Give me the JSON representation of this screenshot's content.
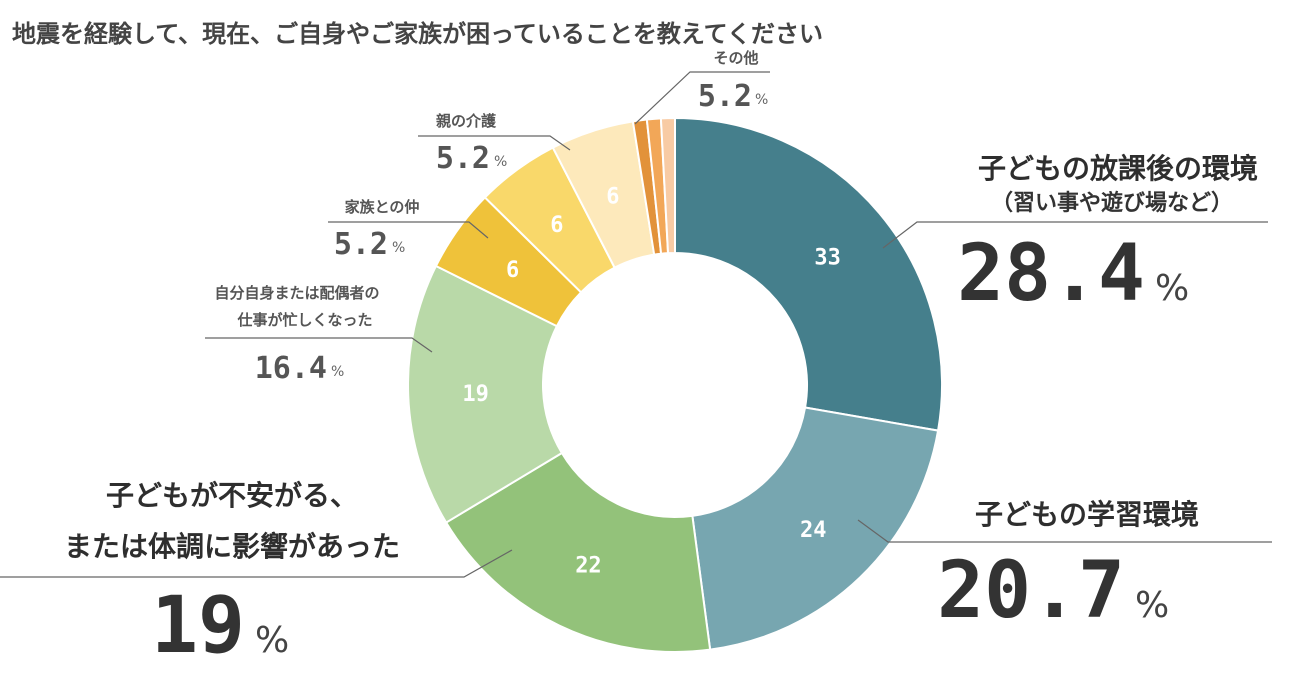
{
  "chart_data": {
    "type": "pie",
    "title": "地震を経験して、現在、ご自身やご家族が困っていることを教えてください",
    "unit": "%",
    "slices": [
      {
        "label": "子どもの放課後の環境",
        "sublabel": "（習い事や遊び場など）",
        "value": 33,
        "percent": "28.4",
        "color": "#457f8c"
      },
      {
        "label": "子どもの学習環境",
        "value": 24,
        "percent": "20.7",
        "color": "#77a6b0"
      },
      {
        "label_lines": [
          "子どもが不安がる、",
          "または体調に影響があった"
        ],
        "value": 22,
        "percent": "19",
        "color": "#93c27a"
      },
      {
        "label_lines": [
          "自分自身または配偶者の",
          "仕事が忙しくなった"
        ],
        "value": 19,
        "percent": "16.4",
        "color": "#b9d9a8"
      },
      {
        "label": "家族との仲",
        "value": 6,
        "percent": "5.2",
        "color": "#efc23a"
      },
      {
        "label": "親の介護",
        "value": 6,
        "percent": "5.2",
        "color": "#f9d86a"
      },
      {
        "label": "その他",
        "value": 6,
        "percent": "5.2",
        "color": "#fde9bb"
      },
      {
        "label": "",
        "value": 1,
        "color": "#e2923a"
      },
      {
        "label": "",
        "value": 1,
        "color": "#f2a758"
      },
      {
        "label": "",
        "value": 1,
        "color": "#f8cba4"
      }
    ],
    "slice_value_labels": [
      "33",
      "24",
      "22",
      "19",
      "6",
      "6",
      "6"
    ]
  }
}
